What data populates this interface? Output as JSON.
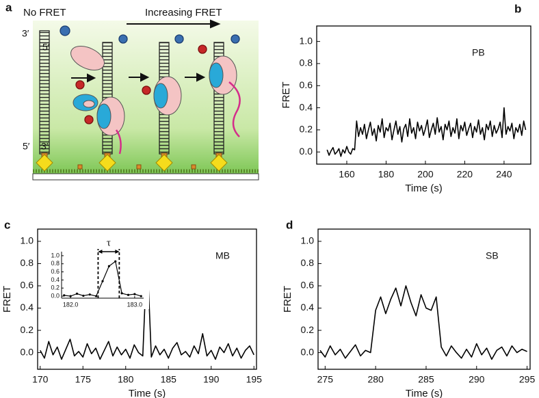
{
  "diagram": {
    "label": "a",
    "texts": {
      "no_fret": "No FRET",
      "increasing_fret": "Increasing FRET",
      "top_left": "3′",
      "top_right": "5′",
      "bottom_left": "5′",
      "bottom_right": "3′"
    }
  },
  "chart_data": [
    {
      "type": "line",
      "label": "b",
      "annotation": "PB",
      "xlabel": "Time (s)",
      "ylabel": "FRET",
      "color": "#000000",
      "x": [
        150,
        151,
        152,
        153,
        154,
        155,
        156,
        157,
        158,
        159,
        160,
        161,
        162,
        163,
        164,
        165,
        166,
        167,
        168,
        169,
        170,
        171,
        172,
        173,
        174,
        175,
        176,
        177,
        178,
        179,
        180,
        181,
        182,
        183,
        184,
        185,
        186,
        187,
        188,
        189,
        190,
        191,
        192,
        193,
        194,
        195,
        196,
        197,
        198,
        199,
        200,
        201,
        202,
        203,
        204,
        205,
        206,
        207,
        208,
        209,
        210,
        211,
        212,
        213,
        214,
        215,
        216,
        217,
        218,
        219,
        220,
        221,
        222,
        223,
        224,
        225,
        226,
        227,
        228,
        229,
        230,
        231,
        232,
        233,
        234,
        235,
        236,
        237,
        238,
        239,
        240,
        241,
        242,
        243,
        244,
        245,
        246,
        247,
        248,
        249,
        250,
        251
      ],
      "values": [
        0.02,
        -0.03,
        0.01,
        0.04,
        -0.02,
        0.0,
        0.03,
        -0.04,
        0.02,
        -0.01,
        0.05,
        0.0,
        -0.02,
        0.03,
        0.02,
        0.28,
        0.14,
        0.22,
        0.16,
        0.25,
        0.12,
        0.2,
        0.27,
        0.15,
        0.21,
        0.1,
        0.24,
        0.18,
        0.3,
        0.13,
        0.22,
        0.19,
        0.26,
        0.11,
        0.2,
        0.28,
        0.16,
        0.23,
        0.09,
        0.21,
        0.25,
        0.14,
        0.3,
        0.17,
        0.22,
        0.12,
        0.27,
        0.19,
        0.24,
        0.15,
        0.21,
        0.29,
        0.13,
        0.2,
        0.26,
        0.16,
        0.31,
        0.18,
        0.23,
        0.11,
        0.25,
        0.2,
        0.28,
        0.14,
        0.22,
        0.17,
        0.3,
        0.12,
        0.24,
        0.19,
        0.27,
        0.15,
        0.21,
        0.26,
        0.13,
        0.23,
        0.18,
        0.29,
        0.16,
        0.22,
        0.11,
        0.25,
        0.2,
        0.28,
        0.14,
        0.24,
        0.17,
        0.21,
        0.27,
        0.13,
        0.4,
        0.16,
        0.23,
        0.19,
        0.26,
        0.12,
        0.22,
        0.18,
        0.25,
        0.15,
        0.28,
        0.2
      ],
      "xlim": [
        144.7,
        253.6
      ],
      "xticks": [
        160,
        180,
        200,
        220,
        240
      ],
      "ylim": [
        -0.11,
        1.14
      ],
      "yticks": [
        {
          "value": 0,
          "label": "0.0"
        },
        0.2,
        0.4,
        0.6,
        0.8,
        {
          "value": 1,
          "label": "1.0"
        }
      ]
    },
    {
      "type": "line",
      "label": "c",
      "annotation": "MB",
      "xlabel": "Time (s)",
      "ylabel": "FRET",
      "color": "#000000",
      "x": [
        170,
        170.5,
        171,
        171.5,
        172,
        172.5,
        173,
        173.5,
        174,
        174.5,
        175,
        175.5,
        176,
        176.5,
        177,
        177.5,
        178,
        178.5,
        179,
        179.5,
        180,
        180.5,
        181,
        181.5,
        182,
        182.5,
        183,
        183.5,
        184,
        184.5,
        185,
        185.5,
        186,
        186.5,
        187,
        187.5,
        188,
        188.5,
        189,
        189.5,
        190,
        190.5,
        191,
        191.5,
        192,
        192.5,
        193,
        193.5,
        194,
        194.5,
        195
      ],
      "values": [
        0.02,
        -0.05,
        0.1,
        -0.02,
        0.05,
        -0.06,
        0.03,
        0.12,
        -0.03,
        0.01,
        -0.04,
        0.08,
        -0.01,
        0.04,
        -0.06,
        0.02,
        0.1,
        -0.03,
        0.05,
        -0.02,
        0.03,
        -0.05,
        0.07,
        0.0,
        -0.03,
        0.9,
        -0.04,
        0.06,
        -0.02,
        0.03,
        -0.05,
        0.04,
        0.09,
        -0.02,
        0.01,
        -0.04,
        0.06,
        -0.01,
        0.17,
        -0.03,
        0.02,
        -0.06,
        0.05,
        0.0,
        0.08,
        -0.03,
        0.04,
        -0.05,
        0.02,
        0.06,
        -0.02
      ],
      "xlim": [
        169.7,
        195.3
      ],
      "xticks": [
        170,
        175,
        180,
        185,
        190,
        195
      ],
      "ylim": [
        -0.15,
        1.11
      ],
      "yticks": [
        {
          "value": 0,
          "label": "0.0"
        },
        0.2,
        0.4,
        0.6,
        0.8,
        {
          "value": 1,
          "label": "1.0"
        }
      ]
    },
    {
      "type": "line",
      "annotation": "τ",
      "span": [
        182.43,
        182.76
      ],
      "color": "#000000",
      "x": [
        181.9,
        182.0,
        182.1,
        182.2,
        182.3,
        182.4,
        182.5,
        182.6,
        182.7,
        182.8,
        182.9,
        183.0,
        183.1
      ],
      "values": [
        0.02,
        0.0,
        0.06,
        0.01,
        0.04,
        0.0,
        0.37,
        0.74,
        0.86,
        0.07,
        0.03,
        0.05,
        0.0
      ],
      "xlim": [
        181.86,
        183.14
      ],
      "xticks": [
        {
          "value": 182,
          "label": "182.0"
        },
        {
          "value": 183,
          "label": "183.0"
        }
      ],
      "ylim": [
        -0.05,
        1.1
      ],
      "yticks": [
        {
          "value": 0,
          "label": "0.0"
        },
        0.2,
        0.4,
        0.6,
        0.8,
        {
          "value": 1,
          "label": "1.0"
        }
      ]
    },
    {
      "type": "line",
      "label": "d",
      "annotation": "SB",
      "xlabel": "Time (s)",
      "ylabel": "FRET",
      "color": "#000000",
      "x": [
        274.5,
        275,
        275.5,
        276,
        276.5,
        277,
        277.5,
        278,
        278.5,
        279,
        279.5,
        280,
        280.5,
        281,
        281.5,
        282,
        282.5,
        283,
        283.5,
        284,
        284.5,
        285,
        285.5,
        286,
        286.5,
        287,
        287.5,
        288,
        288.5,
        289,
        289.5,
        290,
        290.5,
        291,
        291.5,
        292,
        292.5,
        293,
        293.5,
        294,
        294.5,
        295
      ],
      "values": [
        0.02,
        -0.04,
        0.06,
        -0.02,
        0.03,
        -0.05,
        0.01,
        0.07,
        -0.03,
        0.02,
        0.0,
        0.38,
        0.5,
        0.35,
        0.48,
        0.58,
        0.42,
        0.6,
        0.45,
        0.33,
        0.52,
        0.4,
        0.38,
        0.5,
        0.05,
        -0.03,
        0.06,
        0.0,
        -0.05,
        0.03,
        -0.04,
        0.08,
        -0.02,
        0.04,
        -0.06,
        0.02,
        0.05,
        -0.03,
        0.06,
        0.0,
        0.03,
        0.01
      ],
      "xlim": [
        274.3,
        295.3
      ],
      "xticks": [
        275,
        280,
        285,
        290,
        295
      ],
      "ylim": [
        -0.15,
        1.11
      ],
      "yticks": [
        {
          "value": 0,
          "label": "0.0"
        },
        0.2,
        0.4,
        0.6,
        0.8,
        {
          "value": 1,
          "label": "1.0"
        }
      ]
    }
  ]
}
